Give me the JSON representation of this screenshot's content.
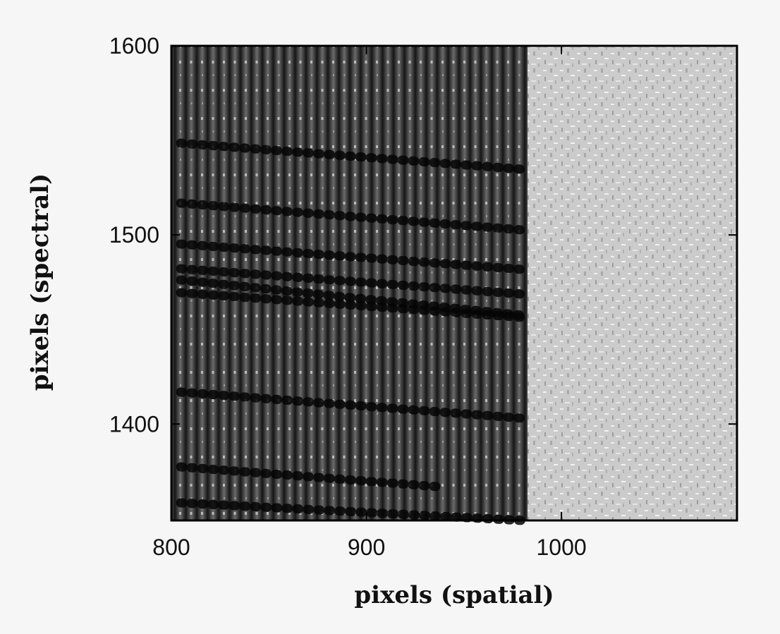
{
  "chart_data": {
    "type": "image",
    "xlabel": "pixels (spatial)",
    "ylabel": "pixels (spectral)",
    "xlim": [
      800,
      1090
    ],
    "xticks": [
      800,
      900,
      1000
    ],
    "ylim": [
      1349,
      1600
    ],
    "yticks": [
      1400,
      1500,
      1600
    ]
  }
}
